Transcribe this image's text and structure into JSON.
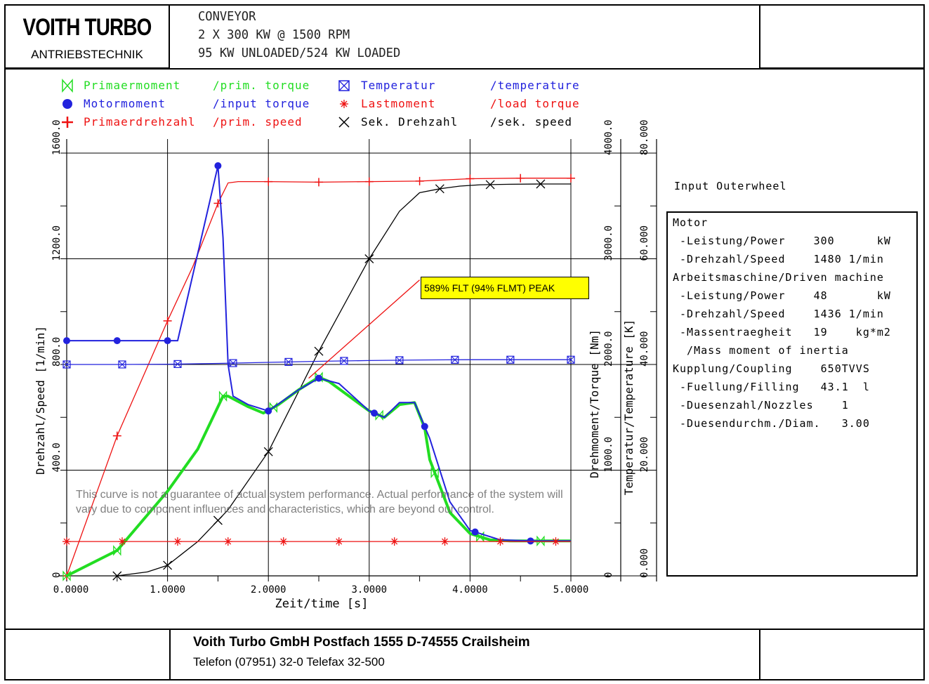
{
  "header": {
    "logo_main": "VOITH TURBO",
    "logo_sub": "ANTRIEBSTECHNIK",
    "title_lines": [
      "CONVEYOR",
      "2 X 300 KW @ 1500 RPM",
      "95 KW UNLOADED/524 KW LOADED"
    ]
  },
  "footer": {
    "company": "Voith Turbo GmbH Postfach 1555 D-74555 Crailsheim",
    "contact": "Telefon (07951) 32-0 Telefax 32-500"
  },
  "annotation": "589% FLT (94% FLMT) PEAK",
  "disclaimer": "This curve is not a guarantee of actual system performance. Actual performance of the system will vary due to component influences and characteristics, which are beyond our control.",
  "info": {
    "title": "Input Outerwheel",
    "rows": [
      "Motor",
      " -Leistung/Power    300      kW",
      " -Drehzahl/Speed    1480 1/min",
      "Arbeitsmaschine/Driven machine",
      " -Leistung/Power    48       kW",
      " -Drehzahl/Speed    1436 1/min",
      " -Massentraegheit   19    kg*m2",
      "  /Mass moment of inertia",
      "Kupplung/Coupling    650TVVS",
      " -Fuellung/Filling   43.1  l",
      " -Duesenzahl/Nozzles    1",
      " -Duesendurchm./Diam.   3.00"
    ]
  },
  "legend": [
    {
      "de": "Primaermoment",
      "en": "/prim. torque",
      "color": "#22dd22",
      "marker": "bowtie"
    },
    {
      "de": "Motormoment",
      "en": "/input torque",
      "color": "#2222dd",
      "marker": "dot"
    },
    {
      "de": "Primaerdrehzahl",
      "en": "/prim. speed",
      "color": "#ee1111",
      "marker": "plus"
    },
    {
      "de": "Temperatur",
      "en": "/temperature",
      "color": "#2222dd",
      "marker": "xbox"
    },
    {
      "de": "Lastmoment",
      "en": "/load   torque",
      "color": "#ee1111",
      "marker": "star"
    },
    {
      "de": "Sek. Drehzahl",
      "en": "/sek.  speed",
      "color": "#000000",
      "marker": "x"
    }
  ],
  "chart_data": {
    "type": "line",
    "title": "CONVEYOR",
    "xlabel": "Zeit/time [s]",
    "ylabel_left": "Drehzahl/Speed [1/min]",
    "ylabel_torque": "Drehmoment/Torque [Nm]",
    "ylabel_temp": "Temperatur/Temperature [K]",
    "xlim": [
      0,
      5
    ],
    "ylim_speed": [
      0,
      1600
    ],
    "ylim_torque": [
      0,
      4000
    ],
    "ylim_temp": [
      0,
      80
    ],
    "x_ticks": [
      "0.0000",
      "1.0000",
      "2.0000",
      "3.0000",
      "4.0000",
      "5.0000"
    ],
    "speed_ticks": [
      "0",
      "400.0",
      "800.0",
      "1200.0",
      "1600.0"
    ],
    "torque_ticks": [
      "0",
      "1000.0",
      "2000.0",
      "3000.0",
      "4000.0"
    ],
    "temp_ticks": [
      "0.000",
      "20.000",
      "40.000",
      "60.000",
      "80.000"
    ],
    "series": [
      {
        "name": "Primaerdrehzahl /prim. speed",
        "axis": "speed",
        "color": "#ee1111",
        "marker": "plus",
        "x": [
          0,
          0.5,
          1.0,
          1.25,
          1.5,
          1.6,
          1.7,
          2.0,
          2.5,
          3.0,
          3.5,
          4.0,
          4.5,
          5.0
        ],
        "y": [
          0,
          530,
          965,
          1170,
          1410,
          1487,
          1492,
          1492,
          1490,
          1492,
          1494,
          1503,
          1505,
          1505
        ],
        "markers_x": [
          0,
          0.5,
          1.0,
          1.5,
          2.0,
          2.5,
          3.0,
          3.5,
          4.0,
          4.5,
          5.0
        ]
      },
      {
        "name": "Sek. Drehzahl /sek. speed",
        "axis": "speed",
        "color": "#000000",
        "marker": "x",
        "x": [
          0.5,
          0.8,
          1.0,
          1.3,
          1.6,
          2.0,
          2.5,
          3.0,
          3.3,
          3.5,
          3.7,
          3.9,
          4.1,
          4.4,
          4.7,
          5.0
        ],
        "y": [
          0,
          15,
          40,
          130,
          250,
          470,
          850,
          1200,
          1380,
          1450,
          1465,
          1475,
          1480,
          1482,
          1483,
          1483
        ],
        "markers_x": [
          0.5,
          1.0,
          1.5,
          2.0,
          2.5,
          3.0,
          3.7,
          4.2,
          4.7
        ]
      },
      {
        "name": "Primaermoment /prim. torque",
        "axis": "torque",
        "color": "#22dd22",
        "marker": "bowtie",
        "x": [
          0,
          0.5,
          1.0,
          1.3,
          1.55,
          1.6,
          1.8,
          1.95,
          2.1,
          2.3,
          2.5,
          2.6,
          2.8,
          3.0,
          3.15,
          3.3,
          3.45,
          3.55,
          3.6,
          3.8,
          4.0,
          4.2,
          4.4,
          4.6,
          4.8,
          5.0
        ],
        "y": [
          0,
          240,
          800,
          1200,
          1700,
          1700,
          1600,
          1540,
          1620,
          1760,
          1880,
          1840,
          1700,
          1560,
          1500,
          1620,
          1640,
          1400,
          1100,
          600,
          400,
          340,
          330,
          330,
          330,
          330
        ],
        "markers_x": [
          0,
          0.5,
          1.55,
          2.05,
          2.5,
          3.1,
          3.65,
          4.1,
          4.7
        ]
      },
      {
        "name": "Motormoment /input torque",
        "axis": "torque",
        "color": "#2222dd",
        "marker": "dot",
        "x": [
          0,
          0.5,
          1.0,
          1.1,
          1.5,
          1.55,
          1.6,
          1.65,
          1.8,
          2.0,
          2.3,
          2.5,
          2.7,
          3.0,
          3.15,
          3.3,
          3.45,
          3.6,
          3.8,
          4.0,
          4.3,
          4.6,
          5.0
        ],
        "y": [
          2225,
          2225,
          2225,
          2225,
          3880,
          3200,
          2000,
          1700,
          1620,
          1560,
          1760,
          1870,
          1820,
          1560,
          1500,
          1640,
          1640,
          1300,
          700,
          430,
          340,
          330,
          330
        ],
        "markers_x": [
          0,
          0.5,
          1.0,
          1.5,
          2.0,
          2.5,
          3.05,
          3.55,
          4.05,
          4.6
        ]
      },
      {
        "name": "Lastmoment /load torque",
        "axis": "torque",
        "color": "#ee1111",
        "marker": "star",
        "x": [
          0,
          5.0
        ],
        "y": [
          325,
          325
        ],
        "markers_x": [
          0,
          0.55,
          1.1,
          1.6,
          2.15,
          2.7,
          3.25,
          3.75,
          4.3,
          4.85
        ]
      },
      {
        "name": "Temperatur /temperature",
        "axis": "temp",
        "color": "#2222dd",
        "marker": "xbox",
        "x": [
          0,
          0.5,
          1.0,
          1.5,
          2.0,
          2.5,
          3.0,
          3.5,
          4.0,
          4.5,
          5.0
        ],
        "y": [
          40.0,
          40.0,
          40.05,
          40.2,
          40.4,
          40.6,
          40.75,
          40.85,
          40.9,
          40.9,
          40.9
        ],
        "markers_x": [
          0,
          0.55,
          1.1,
          1.65,
          2.2,
          2.75,
          3.3,
          3.85,
          4.4,
          5.0
        ]
      },
      {
        "name": "annotation-leader",
        "axis": "torque",
        "color": "#ee1111",
        "marker": "none",
        "x": [
          2.4,
          3.5
        ],
        "y": [
          1870,
          2800
        ]
      }
    ]
  }
}
